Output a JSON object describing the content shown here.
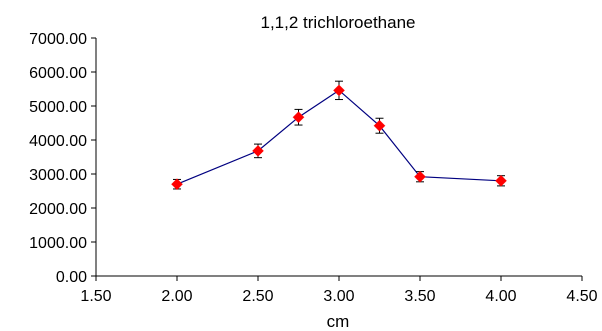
{
  "chart_data": {
    "type": "line",
    "title": "1,1,2 trichloroethane",
    "xlabel": "cm",
    "ylabel": "",
    "xlim": [
      1.5,
      4.5
    ],
    "ylim": [
      0,
      7000
    ],
    "x_ticks": [
      "1.50",
      "2.00",
      "2.50",
      "3.00",
      "3.50",
      "4.00",
      "4.50"
    ],
    "y_ticks": [
      "0.00",
      "1000.00",
      "2000.00",
      "3000.00",
      "4000.00",
      "5000.00",
      "6000.00",
      "7000.00"
    ],
    "grid": false,
    "legend": "none",
    "series": [
      {
        "x": [
          2.0,
          2.5,
          2.75,
          3.0,
          3.25,
          3.5,
          4.0
        ],
        "y": [
          2700,
          3680,
          4670,
          5460,
          4420,
          2920,
          2800
        ],
        "error": [
          140,
          200,
          230,
          270,
          220,
          150,
          150
        ],
        "line_color": "#000080",
        "marker_color": "#ff0000",
        "marker": "diamond"
      }
    ]
  }
}
